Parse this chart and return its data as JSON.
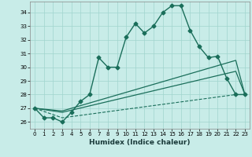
{
  "xlabel": "Humidex (Indice chaleur)",
  "bg_color": "#c8ece8",
  "grid_color": "#a0d4ce",
  "line_color": "#1a6e5a",
  "xlim": [
    -0.5,
    23.5
  ],
  "ylim": [
    25.5,
    34.8
  ],
  "yticks": [
    26,
    27,
    28,
    29,
    30,
    31,
    32,
    33,
    34
  ],
  "xticks": [
    0,
    1,
    2,
    3,
    4,
    5,
    6,
    7,
    8,
    9,
    10,
    11,
    12,
    13,
    14,
    15,
    16,
    17,
    18,
    19,
    20,
    21,
    22,
    23
  ],
  "series": [
    {
      "x": [
        0,
        1,
        2,
        3,
        4,
        5,
        6,
        7,
        8,
        9,
        10,
        11,
        12,
        13,
        14,
        15,
        16,
        17,
        18,
        19,
        20,
        21,
        22,
        23
      ],
      "y": [
        27.0,
        26.3,
        26.3,
        26.0,
        26.7,
        27.5,
        28.0,
        30.7,
        30.0,
        30.0,
        32.2,
        33.2,
        32.5,
        33.0,
        34.0,
        34.5,
        34.5,
        32.7,
        31.5,
        30.7,
        30.8,
        29.2,
        28.0,
        28.0
      ],
      "marker": "D",
      "markersize": 2.5,
      "linewidth": 1.0,
      "linestyle": "-"
    },
    {
      "x": [
        0,
        3,
        22,
        23
      ],
      "y": [
        27.0,
        26.8,
        30.5,
        28.0
      ],
      "marker": null,
      "markersize": 0,
      "linewidth": 0.9,
      "linestyle": "-"
    },
    {
      "x": [
        0,
        3,
        22,
        23
      ],
      "y": [
        27.0,
        26.7,
        29.7,
        28.0
      ],
      "marker": null,
      "markersize": 0,
      "linewidth": 0.9,
      "linestyle": "-"
    },
    {
      "x": [
        0,
        3,
        22,
        23
      ],
      "y": [
        27.0,
        26.3,
        28.0,
        28.0
      ],
      "marker": null,
      "markersize": 0,
      "linewidth": 0.8,
      "linestyle": "--"
    }
  ]
}
